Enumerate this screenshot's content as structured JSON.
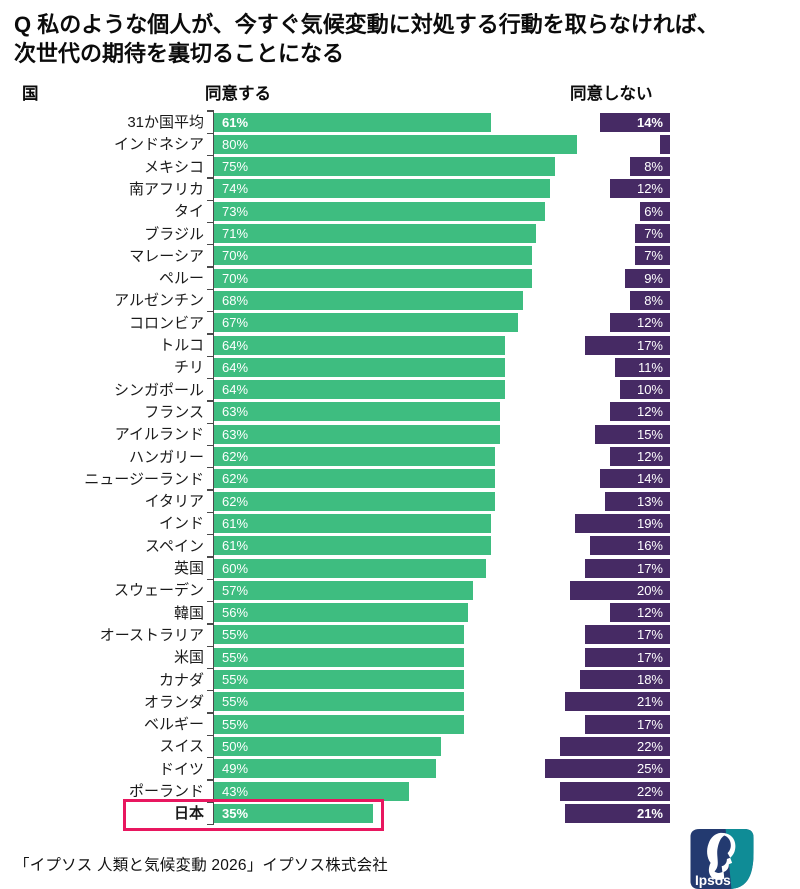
{
  "title": {
    "line1": "Q 私のような個人が、今すぐ気候変動に対処する行動を取らなければ、",
    "line2": "次世代の期待を裏切ることになる"
  },
  "headers": {
    "country": "国",
    "agree": "同意する",
    "disagree": "同意しない"
  },
  "footer": {
    "source": "「イプソス 人類と気候変動 2026」イプソス株式会社"
  },
  "logo": {
    "label": "Ipsos",
    "navy": "#233a70",
    "teal": "#0f8c96"
  },
  "colors": {
    "agree_bar": "#3ebd80",
    "disagree_bar": "#462a64",
    "highlight_box": "#e8175f",
    "axis": "#4a4a4a"
  },
  "chart_data": {
    "type": "bar",
    "orientation": "horizontal",
    "series": [
      {
        "name": "同意する"
      },
      {
        "name": "同意しない"
      }
    ],
    "value_unit": "%",
    "xlim_agree": [
      0,
      80
    ],
    "xlim_disagree": [
      0,
      25
    ],
    "highlighted_country": "日本",
    "rows": [
      {
        "country": "31か国平均",
        "agree": 61,
        "agree_label": "61%",
        "disagree": 14,
        "disagree_label": "14%",
        "value_bold": true
      },
      {
        "country": "インドネシア",
        "agree": 80,
        "agree_label": "80%",
        "disagree": 2,
        "disagree_label": ""
      },
      {
        "country": "メキシコ",
        "agree": 75,
        "agree_label": "75%",
        "disagree": 8,
        "disagree_label": "8%"
      },
      {
        "country": "南アフリカ",
        "agree": 74,
        "agree_label": "74%",
        "disagree": 12,
        "disagree_label": "12%"
      },
      {
        "country": "タイ",
        "agree": 73,
        "agree_label": "73%",
        "disagree": 6,
        "disagree_label": "6%"
      },
      {
        "country": "ブラジル",
        "agree": 71,
        "agree_label": "71%",
        "disagree": 7,
        "disagree_label": "7%"
      },
      {
        "country": "マレーシア",
        "agree": 70,
        "agree_label": "70%",
        "disagree": 7,
        "disagree_label": "7%"
      },
      {
        "country": "ペルー",
        "agree": 70,
        "agree_label": "70%",
        "disagree": 9,
        "disagree_label": "9%"
      },
      {
        "country": "アルゼンチン",
        "agree": 68,
        "agree_label": "68%",
        "disagree": 8,
        "disagree_label": "8%"
      },
      {
        "country": "コロンビア",
        "agree": 67,
        "agree_label": "67%",
        "disagree": 12,
        "disagree_label": "12%"
      },
      {
        "country": "トルコ",
        "agree": 64,
        "agree_label": "64%",
        "disagree": 17,
        "disagree_label": "17%"
      },
      {
        "country": "チリ",
        "agree": 64,
        "agree_label": "64%",
        "disagree": 11,
        "disagree_label": "11%"
      },
      {
        "country": "シンガポール",
        "agree": 64,
        "agree_label": "64%",
        "disagree": 10,
        "disagree_label": "10%"
      },
      {
        "country": "フランス",
        "agree": 63,
        "agree_label": "63%",
        "disagree": 12,
        "disagree_label": "12%"
      },
      {
        "country": "アイルランド",
        "agree": 63,
        "agree_label": "63%",
        "disagree": 15,
        "disagree_label": "15%"
      },
      {
        "country": "ハンガリー",
        "agree": 62,
        "agree_label": "62%",
        "disagree": 12,
        "disagree_label": "12%"
      },
      {
        "country": "ニュージーランド",
        "agree": 62,
        "agree_label": "62%",
        "disagree": 14,
        "disagree_label": "14%"
      },
      {
        "country": "イタリア",
        "agree": 62,
        "agree_label": "62%",
        "disagree": 13,
        "disagree_label": "13%"
      },
      {
        "country": "インド",
        "agree": 61,
        "agree_label": "61%",
        "disagree": 19,
        "disagree_label": "19%"
      },
      {
        "country": "スペイン",
        "agree": 61,
        "agree_label": "61%",
        "disagree": 16,
        "disagree_label": "16%"
      },
      {
        "country": "英国",
        "agree": 60,
        "agree_label": "60%",
        "disagree": 17,
        "disagree_label": "17%"
      },
      {
        "country": "スウェーデン",
        "agree": 57,
        "agree_label": "57%",
        "disagree": 20,
        "disagree_label": "20%"
      },
      {
        "country": "韓国",
        "agree": 56,
        "agree_label": "56%",
        "disagree": 12,
        "disagree_label": "12%"
      },
      {
        "country": "オーストラリア",
        "agree": 55,
        "agree_label": "55%",
        "disagree": 17,
        "disagree_label": "17%"
      },
      {
        "country": "米国",
        "agree": 55,
        "agree_label": "55%",
        "disagree": 17,
        "disagree_label": "17%"
      },
      {
        "country": "カナダ",
        "agree": 55,
        "agree_label": "55%",
        "disagree": 18,
        "disagree_label": "18%"
      },
      {
        "country": "オランダ",
        "agree": 55,
        "agree_label": "55%",
        "disagree": 21,
        "disagree_label": "21%"
      },
      {
        "country": "ベルギー",
        "agree": 55,
        "agree_label": "55%",
        "disagree": 17,
        "disagree_label": "17%"
      },
      {
        "country": "スイス",
        "agree": 50,
        "agree_label": "50%",
        "disagree": 22,
        "disagree_label": "22%"
      },
      {
        "country": "ドイツ",
        "agree": 49,
        "agree_label": "49%",
        "disagree": 25,
        "disagree_label": "25%"
      },
      {
        "country": "ポーランド",
        "agree": 43,
        "agree_label": "43%",
        "disagree": 22,
        "disagree_label": "22%"
      },
      {
        "country": "日本",
        "agree": 35,
        "agree_label": "35%",
        "disagree": 21,
        "disagree_label": "21%",
        "label_bold": true,
        "value_bold": true,
        "highlight": true
      }
    ]
  }
}
